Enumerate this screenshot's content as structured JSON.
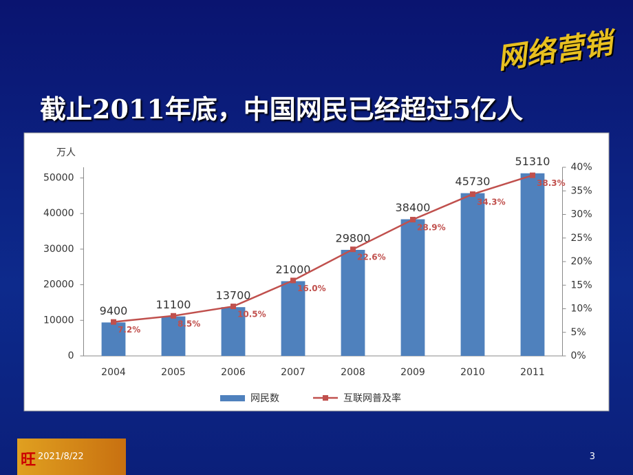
{
  "header": {
    "logo": "网络营销",
    "title": "截止2011年底，中国网民已经超过5亿人"
  },
  "chart_data": {
    "type": "bar-line",
    "y_label": "万人",
    "categories": [
      "2004",
      "2005",
      "2006",
      "2007",
      "2008",
      "2009",
      "2010",
      "2011"
    ],
    "series": [
      {
        "name": "网民数",
        "type": "bar",
        "color": "#4f81bd",
        "values": [
          9400,
          11100,
          13700,
          21000,
          29800,
          38400,
          45730,
          51310
        ]
      },
      {
        "name": "互联网普及率",
        "type": "line",
        "axis": "y2",
        "color": "#c0504d",
        "values": [
          7.2,
          8.5,
          10.5,
          16.0,
          22.6,
          28.9,
          34.3,
          38.3
        ],
        "value_labels": [
          "7.2%",
          "8.5%",
          "10.5%",
          "16.0%",
          "22.6%",
          "28.9%",
          "34.3%",
          "38.3%"
        ]
      }
    ],
    "ylim": [
      0,
      53000
    ],
    "yticks": [
      0,
      10000,
      20000,
      30000,
      40000,
      50000
    ],
    "y2lim": [
      0,
      40
    ],
    "y2ticks": [
      {
        "value": 0,
        "label": "0%"
      },
      {
        "value": 5,
        "label": "5%"
      },
      {
        "value": 10,
        "label": "10%"
      },
      {
        "value": 15,
        "label": "15%"
      },
      {
        "value": 20,
        "label": "20%"
      },
      {
        "value": 25,
        "label": "25%"
      },
      {
        "value": 30,
        "label": "30%"
      },
      {
        "value": 35,
        "label": "35%"
      },
      {
        "value": 40,
        "label": "40%"
      }
    ],
    "legend": "bottom"
  },
  "footer": {
    "badge": "旺",
    "date": "2021/8/22",
    "page": "3"
  }
}
